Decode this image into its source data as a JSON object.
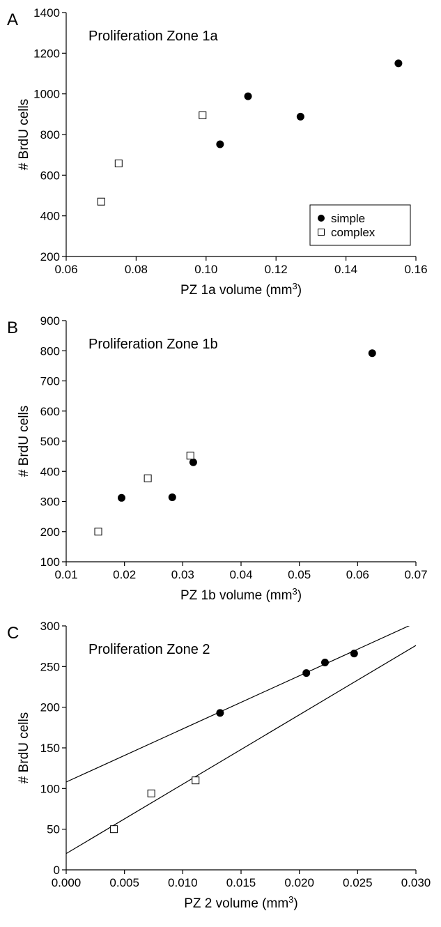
{
  "chart_data": [
    {
      "type": "scatter",
      "panel_label": "A",
      "title": "Proliferation Zone 1a",
      "xlabel": "PZ 1a volume (mm",
      "xlabel_sup": "3",
      "xlabel_close": ")",
      "ylabel": "# BrdU cells",
      "xlim": [
        0.06,
        0.16
      ],
      "ylim": [
        200,
        1400
      ],
      "xticks": [
        "0.06",
        "0.08",
        "0.10",
        "0.12",
        "0.14",
        "0.16"
      ],
      "yticks": [
        "200",
        "400",
        "600",
        "800",
        "1000",
        "1200",
        "1400"
      ],
      "legend_position": "bottom-right",
      "series": [
        {
          "name": "simple",
          "marker": "filled-circle",
          "x": [
            0.104,
            0.112,
            0.127,
            0.155
          ],
          "y": [
            752,
            988,
            888,
            1150
          ]
        },
        {
          "name": "complex",
          "marker": "open-square",
          "x": [
            0.07,
            0.075,
            0.099
          ],
          "y": [
            470,
            658,
            895
          ]
        }
      ]
    },
    {
      "type": "scatter",
      "panel_label": "B",
      "title": "Proliferation Zone 1b",
      "xlabel": "PZ 1b volume (mm",
      "xlabel_sup": "3",
      "xlabel_close": ")",
      "ylabel": "# BrdU cells",
      "xlim": [
        0.01,
        0.07
      ],
      "ylim": [
        100,
        900
      ],
      "xticks": [
        "0.01",
        "0.02",
        "0.03",
        "0.04",
        "0.05",
        "0.06",
        "0.07"
      ],
      "yticks": [
        "100",
        "200",
        "300",
        "400",
        "500",
        "600",
        "700",
        "800",
        "900"
      ],
      "series": [
        {
          "marker": "filled-circle",
          "x": [
            0.0195,
            0.0282,
            0.0318,
            0.0625
          ],
          "y": [
            312,
            314,
            430,
            792
          ]
        },
        {
          "marker": "open-square",
          "x": [
            0.0155,
            0.024,
            0.0313
          ],
          "y": [
            200,
            377,
            452
          ]
        }
      ]
    },
    {
      "type": "scatter",
      "panel_label": "C",
      "title": "Proliferation Zone 2",
      "xlabel": "PZ 2 volume (mm",
      "xlabel_sup": "3",
      "xlabel_close": ")",
      "ylabel": "# BrdU cells",
      "xlim": [
        0.0,
        0.03
      ],
      "ylim": [
        0,
        300
      ],
      "xticks": [
        "0.000",
        "0.005",
        "0.010",
        "0.015",
        "0.020",
        "0.025",
        "0.030"
      ],
      "yticks": [
        "0",
        "50",
        "100",
        "150",
        "200",
        "250",
        "300"
      ],
      "series": [
        {
          "marker": "filled-circle",
          "x": [
            0.0132,
            0.0206,
            0.0222,
            0.0247
          ],
          "y": [
            193,
            242,
            255,
            266
          ],
          "trendline": {
            "x": [
              0.0,
              0.03
            ],
            "y": [
              108,
              304
            ]
          }
        },
        {
          "marker": "open-square",
          "x": [
            0.0041,
            0.0073,
            0.0111
          ],
          "y": [
            50,
            94,
            110
          ],
          "trendline": {
            "x": [
              0.0,
              0.03
            ],
            "y": [
              20,
              276
            ]
          }
        }
      ]
    }
  ]
}
